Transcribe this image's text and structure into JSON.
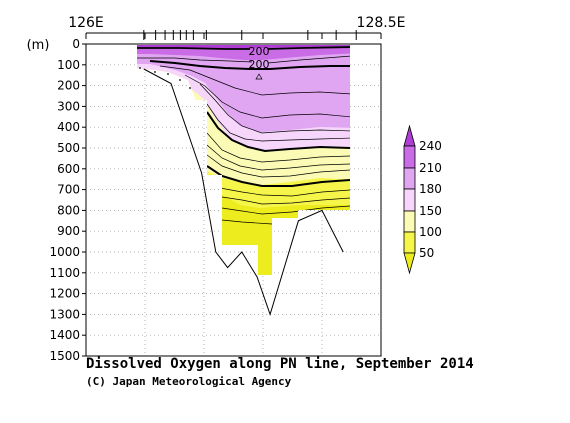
{
  "chart_data": {
    "type": "contour_section",
    "title": "Dissolved Oxygen along PN line, September 2014",
    "credit": "(C) Japan Meteorological Agency",
    "x_ticks": [
      "126E",
      "128.5E"
    ],
    "xlim": [
      126,
      128.5
    ],
    "ylabel": "(m)",
    "ylim": [
      0,
      1500
    ],
    "y_ticks": [
      0,
      100,
      200,
      300,
      400,
      500,
      600,
      700,
      800,
      900,
      1000,
      1100,
      1200,
      1300,
      1400,
      1500
    ],
    "colorbar": {
      "labels": [
        "240",
        "210",
        "180",
        "150",
        "100",
        "50"
      ],
      "bands": [
        {
          "range": ">240",
          "color": "#b23cd6"
        },
        {
          "range": "210-240",
          "color": "#c96ce6"
        },
        {
          "range": "180-210",
          "color": "#e0a6f2"
        },
        {
          "range": "150-180",
          "color": "#f6d6fb"
        },
        {
          "range": "100-150",
          "color": "#fbfbb6"
        },
        {
          "range": "50-100",
          "color": "#f6f64a"
        },
        {
          "range": "<50",
          "color": "#ecec1e"
        }
      ]
    },
    "contour_labels": [
      "200",
      "200"
    ],
    "bottom_profile": [
      {
        "x": 126.49,
        "depth": 120
      },
      {
        "x": 126.72,
        "depth": 190
      },
      {
        "x": 126.98,
        "depth": 620
      },
      {
        "x": 127.1,
        "depth": 1000
      },
      {
        "x": 127.2,
        "depth": 1075
      },
      {
        "x": 127.32,
        "depth": 1000
      },
      {
        "x": 127.45,
        "depth": 1120
      },
      {
        "x": 127.56,
        "depth": 1300
      },
      {
        "x": 127.8,
        "depth": 850
      },
      {
        "x": 128.0,
        "depth": 800
      },
      {
        "x": 128.18,
        "depth": 1000
      }
    ],
    "station_ticks": [
      126.49,
      126.59,
      126.67,
      126.74,
      126.8,
      126.85,
      126.91,
      127.02,
      127.32,
      127.88,
      128.12,
      128.29
    ],
    "top_tick_marks": [
      126,
      126.5,
      127,
      127.5,
      128,
      128.5
    ]
  }
}
